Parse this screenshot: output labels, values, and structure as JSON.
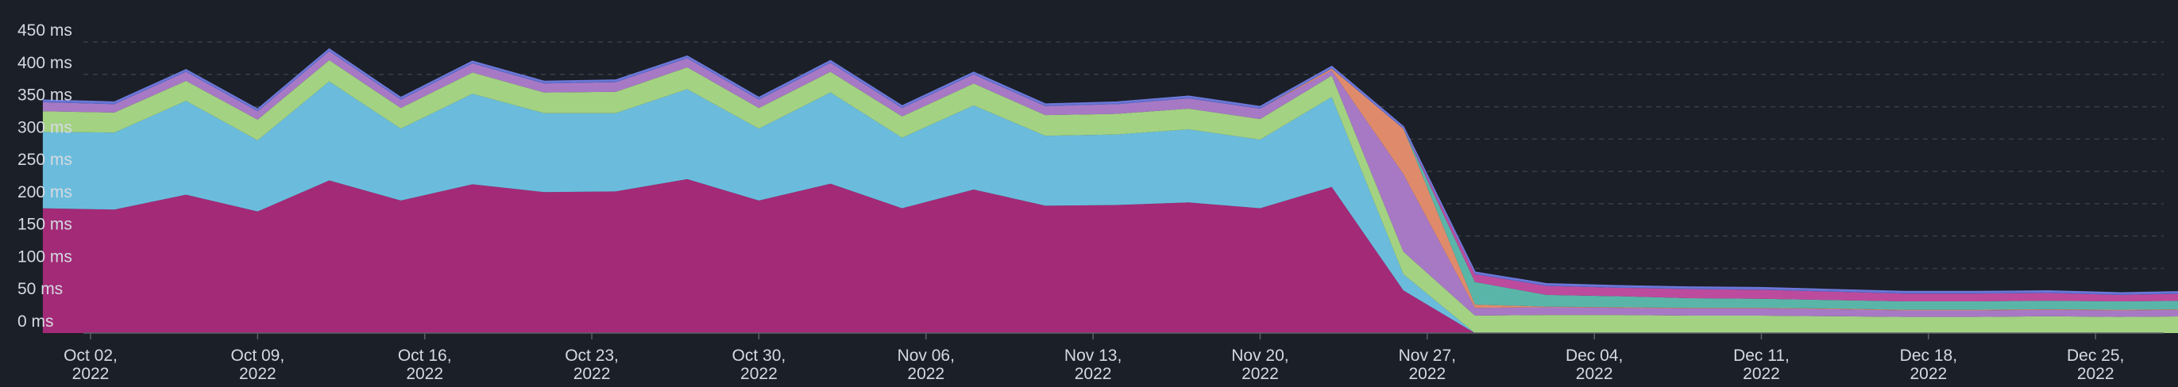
{
  "chart_data": {
    "type": "area",
    "stacked": true,
    "title": "",
    "xlabel": "",
    "ylabel": "",
    "ylim": [
      0,
      450
    ],
    "y_unit": "ms",
    "y_ticks": [
      0,
      50,
      100,
      150,
      200,
      250,
      300,
      350,
      400,
      450
    ],
    "y_tick_labels": [
      "0 ms",
      "50 ms",
      "100 ms",
      "150 ms",
      "200 ms",
      "250 ms",
      "300 ms",
      "350 ms",
      "400 ms",
      "450 ms"
    ],
    "grid": true,
    "legend": "none",
    "x_tick_labels": [
      [
        "Oct 02,",
        "2022"
      ],
      [
        "Oct 09,",
        "2022"
      ],
      [
        "Oct 16,",
        "2022"
      ],
      [
        "Oct 23,",
        "2022"
      ],
      [
        "Oct 30,",
        "2022"
      ],
      [
        "Nov 06,",
        "2022"
      ],
      [
        "Nov 13,",
        "2022"
      ],
      [
        "Nov 20,",
        "2022"
      ],
      [
        "Nov 27,",
        "2022"
      ],
      [
        "Dec 04,",
        "2022"
      ],
      [
        "Dec 11,",
        "2022"
      ],
      [
        "Dec 18,",
        "2022"
      ],
      [
        "Dec 25,",
        "2022"
      ]
    ],
    "x": [
      "2022-09-30",
      "2022-10-03",
      "2022-10-06",
      "2022-10-09",
      "2022-10-12",
      "2022-10-15",
      "2022-10-18",
      "2022-10-21",
      "2022-10-24",
      "2022-10-27",
      "2022-10-30",
      "2022-11-02",
      "2022-11-05",
      "2022-11-08",
      "2022-11-11",
      "2022-11-14",
      "2022-11-17",
      "2022-11-20",
      "2022-11-23",
      "2022-11-26",
      "2022-11-29",
      "2022-12-02",
      "2022-12-05",
      "2022-12-08",
      "2022-12-11",
      "2022-12-14",
      "2022-12-17",
      "2022-12-20",
      "2022-12-23",
      "2022-12-26",
      "2022-12-29"
    ],
    "series": [
      {
        "color": "#a32a77",
        "values": [
          193,
          191,
          214,
          188,
          236,
          205,
          230,
          218,
          219,
          238,
          205,
          231,
          193,
          222,
          197,
          198,
          202,
          193,
          226,
          66,
          0,
          0,
          0,
          0,
          0,
          0,
          0,
          0,
          0,
          0,
          0
        ]
      },
      {
        "color": "#6bbcdc",
        "values": [
          118,
          119,
          145,
          110,
          153,
          111,
          140,
          122,
          121,
          139,
          111,
          141,
          109,
          130,
          108,
          109,
          113,
          106,
          139,
          25,
          0,
          0,
          0,
          0,
          0,
          0,
          0,
          0,
          0,
          0,
          0
        ]
      },
      {
        "color": "#a3d282",
        "values": [
          32,
          31,
          31,
          32,
          33,
          32,
          33,
          32,
          33,
          34,
          32,
          32,
          33,
          34,
          32,
          32,
          32,
          32,
          33,
          35,
          27,
          28,
          28,
          27,
          27,
          26,
          25,
          25,
          26,
          25,
          26
        ]
      },
      {
        "color": "#a779c5",
        "values": [
          14,
          13,
          14,
          13,
          14,
          13,
          14,
          14,
          15,
          14,
          13,
          14,
          13,
          14,
          14,
          15,
          16,
          16,
          8,
          120,
          12,
          12,
          11,
          11,
          11,
          11,
          10,
          10,
          10,
          10,
          10
        ]
      },
      {
        "color": "#df8b6b",
        "values": [
          0,
          0,
          0,
          0,
          0,
          0,
          0,
          0,
          0,
          0,
          0,
          0,
          0,
          0,
          0,
          0,
          0,
          0,
          3,
          70,
          5,
          1,
          1,
          1,
          1,
          1,
          1,
          1,
          1,
          1,
          1
        ]
      },
      {
        "color": "#5ab5a9",
        "values": [
          0,
          0,
          0,
          0,
          0,
          0,
          0,
          0,
          0,
          0,
          0,
          0,
          0,
          0,
          0,
          0,
          0,
          0,
          0,
          0,
          35,
          18,
          17,
          15,
          14,
          13,
          13,
          13,
          13,
          13,
          13
        ]
      },
      {
        "color": "#bd4b9d",
        "values": [
          0,
          0,
          0,
          0,
          0,
          0,
          0,
          0,
          0,
          0,
          0,
          0,
          0,
          0,
          0,
          0,
          0,
          0,
          0,
          0,
          12,
          14,
          13,
          14,
          14,
          13,
          12,
          12,
          12,
          10,
          11
        ]
      },
      {
        "color": "#5e6fd1",
        "values": [
          3,
          3,
          3,
          3,
          3,
          3,
          3,
          3,
          3,
          3,
          3,
          3,
          3,
          3,
          3,
          3,
          3,
          3,
          3,
          3,
          3,
          3,
          3,
          3,
          3,
          3,
          3,
          3,
          3,
          3,
          3
        ]
      }
    ]
  }
}
